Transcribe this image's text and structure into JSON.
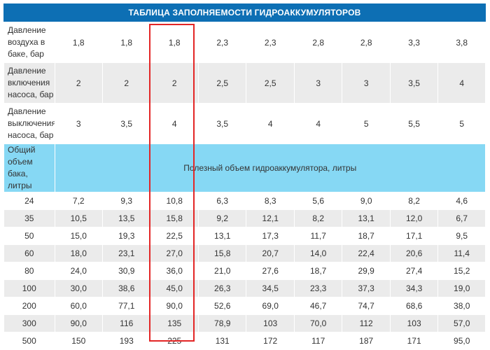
{
  "title": "ТАБЛИЦА ЗАПОЛНЯЕМОСТИ ГИДРОАККУМУЛЯТОРОВ",
  "pressure_rows": [
    {
      "label": "Давление воздуха в баке, бар",
      "values": [
        "1,8",
        "1,8",
        "1,8",
        "2,3",
        "2,3",
        "2,8",
        "2,8",
        "3,3",
        "3,8"
      ]
    },
    {
      "label": "Давление включения насоса, бар",
      "values": [
        "2",
        "2",
        "2",
        "2,5",
        "2,5",
        "3",
        "3",
        "3,5",
        "4"
      ]
    },
    {
      "label": "Давление выключения насоса, бар",
      "values": [
        "3",
        "3,5",
        "4",
        "3,5",
        "4",
        "4",
        "5",
        "5,5",
        "5"
      ]
    }
  ],
  "volume_header": {
    "label": "Общий объем бака, литры",
    "span_text": "Полезный объем гидроаккумулятора, литры"
  },
  "volume_rows": [
    {
      "total": "24",
      "values": [
        "7,2",
        "9,3",
        "10,8",
        "6,3",
        "8,3",
        "5,6",
        "9,0",
        "8,2",
        "4,6"
      ]
    },
    {
      "total": "35",
      "values": [
        "10,5",
        "13,5",
        "15,8",
        "9,2",
        "12,1",
        "8,2",
        "13,1",
        "12,0",
        "6,7"
      ]
    },
    {
      "total": "50",
      "values": [
        "15,0",
        "19,3",
        "22,5",
        "13,1",
        "17,3",
        "11,7",
        "18,7",
        "17,1",
        "9,5"
      ]
    },
    {
      "total": "60",
      "values": [
        "18,0",
        "23,1",
        "27,0",
        "15,8",
        "20,7",
        "14,0",
        "22,4",
        "20,6",
        "11,4"
      ]
    },
    {
      "total": "80",
      "values": [
        "24,0",
        "30,9",
        "36,0",
        "21,0",
        "27,6",
        "18,7",
        "29,9",
        "27,4",
        "15,2"
      ]
    },
    {
      "total": "100",
      "values": [
        "30,0",
        "38,6",
        "45,0",
        "26,3",
        "34,5",
        "23,3",
        "37,3",
        "34,3",
        "19,0"
      ]
    },
    {
      "total": "200",
      "values": [
        "60,0",
        "77,1",
        "90,0",
        "52,6",
        "69,0",
        "46,7",
        "74,7",
        "68,6",
        "38,0"
      ]
    },
    {
      "total": "300",
      "values": [
        "90,0",
        "116",
        "135",
        "78,9",
        "103",
        "70,0",
        "112",
        "103",
        "57,0"
      ]
    },
    {
      "total": "500",
      "values": [
        "150",
        "193",
        "225",
        "131",
        "172",
        "117",
        "187",
        "171",
        "95,0"
      ]
    }
  ],
  "highlighted_column_index": 2,
  "colors": {
    "title_bg": "#0d6fb4",
    "header_blue": "#86d8f4",
    "stripe_gray": "#ebebeb",
    "highlight_red": "#e32626"
  }
}
